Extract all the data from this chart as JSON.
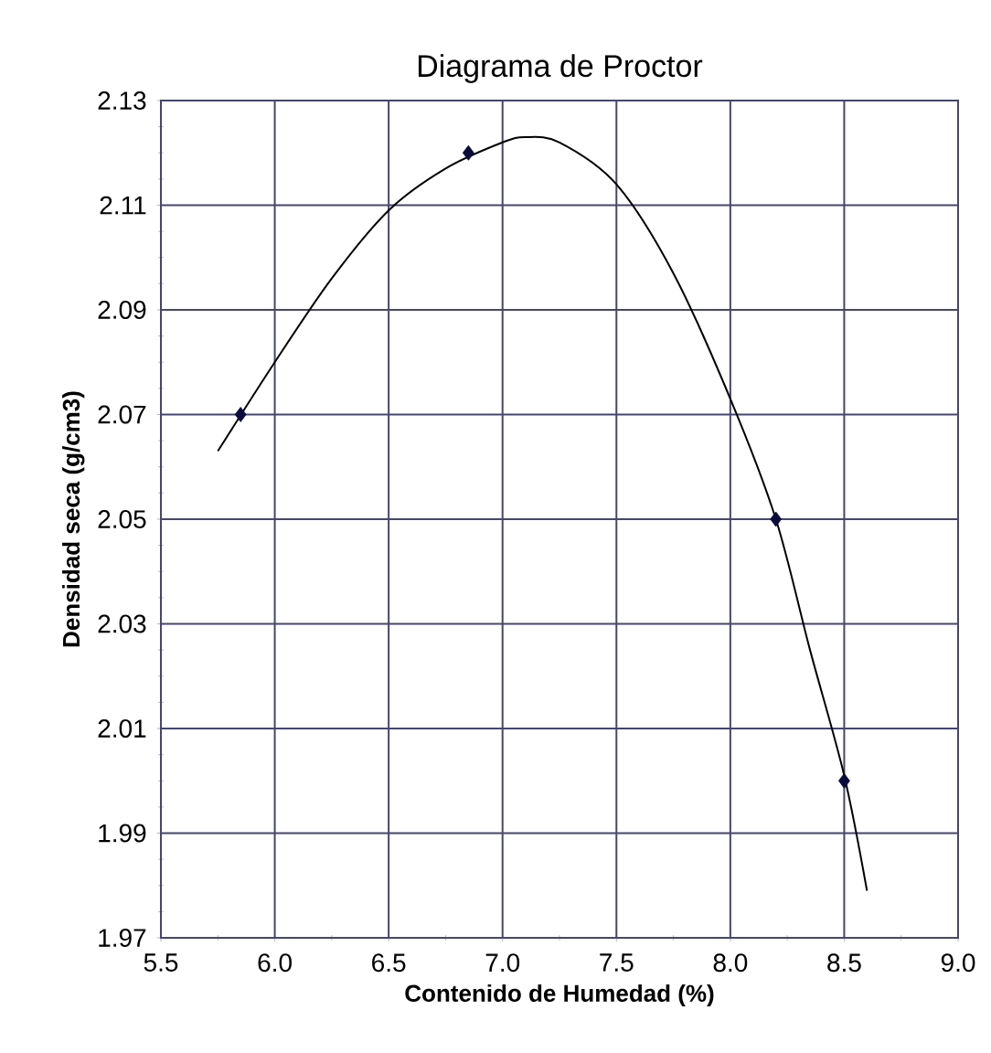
{
  "chart_data": {
    "type": "scatter",
    "title": "Diagrama de Proctor",
    "xlabel": "Contenido de Humedad (%)",
    "ylabel": "Densidad seca (g/cm3)",
    "xlim": [
      5.5,
      9.0
    ],
    "ylim": [
      1.97,
      2.13
    ],
    "xticks": [
      {
        "value": 5.5,
        "label": "5.5"
      },
      {
        "value": 6.0,
        "label": "6.0"
      },
      {
        "value": 6.5,
        "label": "6.5"
      },
      {
        "value": 7.0,
        "label": "7.0"
      },
      {
        "value": 7.5,
        "label": "7.5"
      },
      {
        "value": 8.0,
        "label": "8.0"
      },
      {
        "value": 8.5,
        "label": "8.5"
      },
      {
        "value": 9.0,
        "label": "9.0"
      }
    ],
    "yticks": [
      1.97,
      1.99,
      2.01,
      2.03,
      2.05,
      2.07,
      2.09,
      2.11,
      2.13
    ],
    "grid": true,
    "series": [
      {
        "color": "#0a0a3c",
        "marker": "diamond",
        "x": [
          5.85,
          6.85,
          8.2,
          8.5
        ],
        "values": [
          2.07,
          2.12,
          2.05,
          2.0
        ]
      },
      {
        "type": "line",
        "color": "#000000",
        "marker": "none",
        "x": [
          5.75,
          6.0,
          6.25,
          6.5,
          6.75,
          7.0,
          7.1,
          7.25,
          7.5,
          7.75,
          8.0,
          8.2,
          8.35,
          8.5,
          8.6
        ],
        "values": [
          2.063,
          2.08,
          2.096,
          2.109,
          2.117,
          2.122,
          2.123,
          2.122,
          2.114,
          2.097,
          2.073,
          2.05,
          2.025,
          2.001,
          1.979
        ]
      }
    ]
  }
}
